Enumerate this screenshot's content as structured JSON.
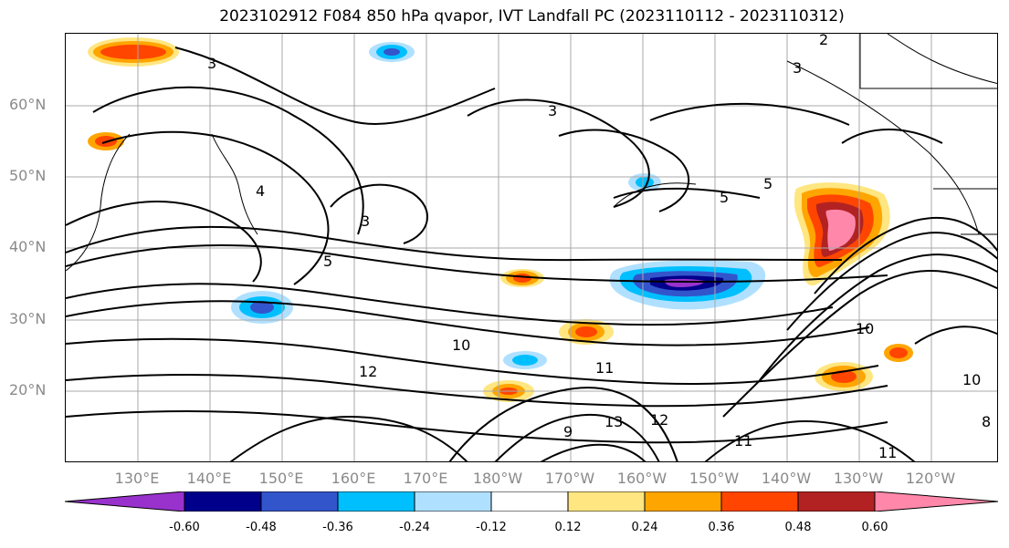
{
  "title": "2023102912 F084 850 hPa qvapor, IVT Landfall PC (2023110112 - 2023110312)",
  "axes": {
    "latitude_labels": [
      "60°N",
      "50°N",
      "40°N",
      "30°N",
      "20°N"
    ],
    "longitude_labels": [
      "130°E",
      "140°E",
      "150°E",
      "160°E",
      "170°E",
      "180°W",
      "170°W",
      "160°W",
      "150°W",
      "140°W",
      "130°W",
      "120°W"
    ],
    "gridlines": true
  },
  "colorbar": {
    "tick_labels": [
      "-0.60",
      "-0.48",
      "-0.36",
      "-0.24",
      "-0.12",
      "0.12",
      "0.24",
      "0.36",
      "0.48",
      "0.60"
    ],
    "extend": "both",
    "colors": [
      "#9932cc",
      "#00008b",
      "#3355cc",
      "#00bfff",
      "#b0e0ff",
      "#ffffff",
      "#ffe680",
      "#ffa500",
      "#ff4500",
      "#b22222",
      "#ff88aa"
    ]
  },
  "contour_labels": [
    "3",
    "3",
    "3",
    "5",
    "5",
    "3",
    "5",
    "10",
    "12",
    "12",
    "11",
    "13",
    "10",
    "11",
    "11",
    "10",
    "8",
    "9",
    "4",
    "2"
  ],
  "features": {
    "positive_anomaly": "Northeast Pacific near 40-50°N, 130-140°W",
    "negative_anomaly": "Central Pacific near 30-35°N, 150-160°W"
  }
}
